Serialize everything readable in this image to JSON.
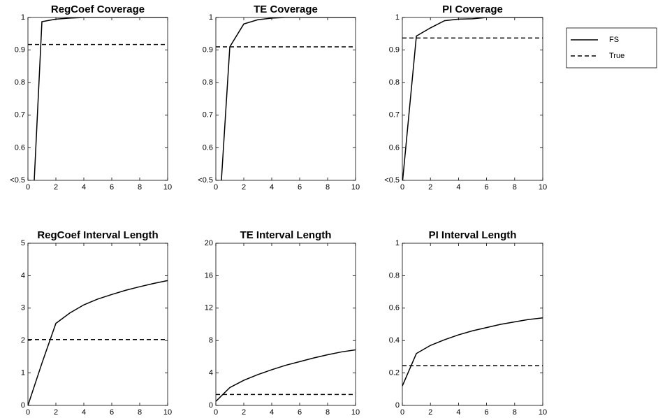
{
  "chart_data": [
    {
      "type": "line",
      "title": "RegCoef Coverage",
      "xlim": [
        0,
        10
      ],
      "xticks": [
        0,
        2,
        4,
        6,
        8,
        10
      ],
      "ylim": [
        0.5,
        1
      ],
      "yticks": [
        {
          "value": 0.5,
          "label": "<0.5"
        },
        0.6,
        0.7,
        0.8,
        0.9,
        1
      ],
      "x": [
        0,
        1,
        2,
        3,
        4,
        5,
        6,
        7,
        8,
        9,
        10
      ],
      "series": [
        {
          "name": "FS",
          "color": "#000000",
          "linestyle": "solid",
          "values": [
            0.1,
            0.987,
            0.995,
            0.998,
            1,
            1,
            1,
            1,
            1,
            1,
            1
          ]
        },
        {
          "name": "True",
          "color": "#000000",
          "linestyle": "dashed",
          "value": 0.917
        }
      ]
    },
    {
      "type": "line",
      "title": "TE Coverage",
      "xlim": [
        0,
        10
      ],
      "xticks": [
        0,
        2,
        4,
        6,
        8,
        10
      ],
      "ylim": [
        0.5,
        1
      ],
      "yticks": [
        {
          "value": 0.5,
          "label": "<0.5"
        },
        0.6,
        0.7,
        0.8,
        0.9,
        1
      ],
      "x": [
        0,
        1,
        2,
        3,
        4,
        5,
        6,
        7,
        8,
        9,
        10
      ],
      "series": [
        {
          "color": "#000000",
          "linestyle": "solid",
          "values": [
            0.23,
            0.91,
            0.98,
            0.993,
            0.998,
            1,
            1,
            1,
            1,
            1,
            1
          ]
        },
        {
          "color": "#000000",
          "linestyle": "dashed",
          "value": 0.91
        }
      ]
    },
    {
      "type": "line",
      "title": "PI Coverage",
      "xlim": [
        0,
        10
      ],
      "xticks": [
        0,
        2,
        4,
        6,
        8,
        10
      ],
      "ylim": [
        0.5,
        1
      ],
      "yticks": [
        {
          "value": 0.5,
          "label": "<0.5"
        },
        0.6,
        0.7,
        0.8,
        0.9,
        1
      ],
      "x": [
        0,
        1,
        2,
        3,
        4,
        5,
        6,
        7,
        8,
        9,
        10
      ],
      "series": [
        {
          "color": "#000000",
          "linestyle": "solid",
          "values": [
            0.49,
            0.943,
            0.968,
            0.99,
            0.995,
            0.996,
            1,
            1,
            1,
            1,
            1
          ]
        },
        {
          "color": "#000000",
          "linestyle": "dashed",
          "value": 0.937
        }
      ]
    },
    {
      "type": "line",
      "title": "RegCoef Interval Length",
      "xlim": [
        0,
        10
      ],
      "xticks": [
        0,
        2,
        4,
        6,
        8,
        10
      ],
      "ylim": [
        0,
        5
      ],
      "yticks": [
        0,
        1,
        2,
        3,
        4,
        5
      ],
      "x": [
        0,
        1,
        2,
        3,
        4,
        5,
        6,
        7,
        8,
        9,
        10
      ],
      "series": [
        {
          "color": "#000000",
          "linestyle": "solid",
          "values": [
            0,
            1.3,
            2.53,
            2.85,
            3.1,
            3.28,
            3.42,
            3.55,
            3.66,
            3.76,
            3.85
          ]
        },
        {
          "color": "#000000",
          "linestyle": "dashed",
          "value": 2.03
        }
      ]
    },
    {
      "type": "line",
      "title": "TE Interval Length",
      "xlim": [
        0,
        10
      ],
      "xticks": [
        0,
        2,
        4,
        6,
        8,
        10
      ],
      "ylim": [
        0,
        20
      ],
      "yticks": [
        0,
        4,
        8,
        12,
        16,
        20
      ],
      "x": [
        0,
        1,
        2,
        3,
        4,
        5,
        6,
        7,
        8,
        9,
        10
      ],
      "series": [
        {
          "color": "#000000",
          "linestyle": "solid",
          "values": [
            0.5,
            2.2,
            3.1,
            3.8,
            4.4,
            4.95,
            5.4,
            5.85,
            6.25,
            6.6,
            6.85
          ]
        },
        {
          "color": "#000000",
          "linestyle": "dashed",
          "value": 1.35
        }
      ]
    },
    {
      "type": "line",
      "title": "PI Interval Length",
      "xlim": [
        0,
        10
      ],
      "xticks": [
        0,
        2,
        4,
        6,
        8,
        10
      ],
      "ylim": [
        0,
        1
      ],
      "yticks": [
        0,
        0.2,
        0.4,
        0.6,
        0.8,
        1
      ],
      "x": [
        0,
        1,
        2,
        3,
        4,
        5,
        6,
        7,
        8,
        9,
        10
      ],
      "series": [
        {
          "color": "#000000",
          "linestyle": "solid",
          "values": [
            0.12,
            0.32,
            0.37,
            0.405,
            0.435,
            0.46,
            0.48,
            0.5,
            0.515,
            0.53,
            0.54
          ]
        },
        {
          "color": "#000000",
          "linestyle": "dashed",
          "value": 0.245
        }
      ]
    }
  ]
}
